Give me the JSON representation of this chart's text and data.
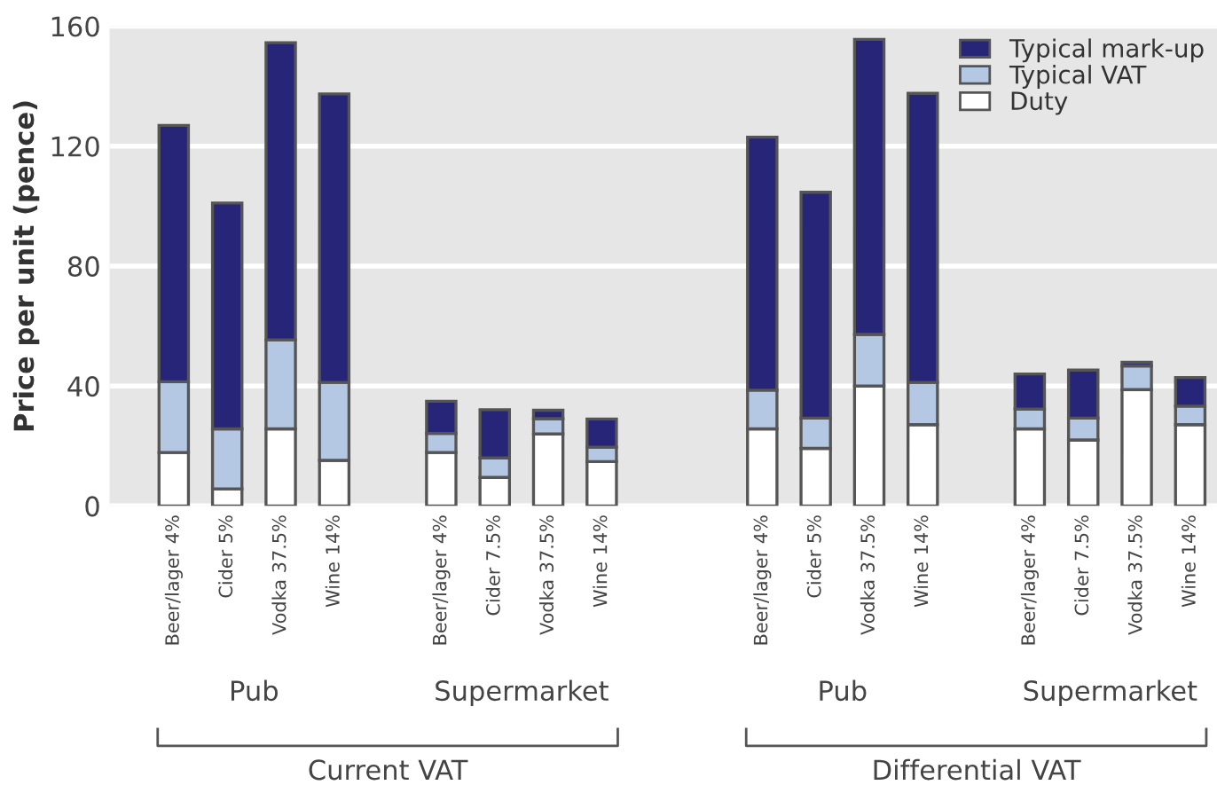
{
  "chart_data": {
    "type": "bar",
    "stacked": true,
    "ylabel": "Price per unit (pence)",
    "categories": [
      "Beer/lager 4%",
      "Cider 5%",
      "Vodka 37.5%",
      "Wine 14%",
      null,
      "Beer/lager 4%",
      "Cider 7.5%",
      "Vodka 37.5%",
      "Wine 14%",
      null,
      null,
      "Beer/lager 4%",
      "Cider 5%",
      "Vodka 37.5%",
      "Wine 14%",
      null,
      "Beer/lager 4%",
      "Cider 7.5%",
      "Vodka 37.5%",
      "Wine 14%"
    ],
    "series": [
      {
        "name": "Duty",
        "color": "#ffffff",
        "values": [
          17.8,
          5.7,
          25.7,
          15.2,
          null,
          17.8,
          9.5,
          24,
          14.8,
          null,
          null,
          25.7,
          19.2,
          40,
          27.1,
          null,
          25.7,
          22,
          38.8,
          27.1
        ]
      },
      {
        "name": "Typical VAT",
        "color": "#b4c7e3",
        "values": [
          23.6,
          20,
          29.7,
          26,
          null,
          6.4,
          6.5,
          5.1,
          4.8,
          null,
          null,
          12.9,
          10.1,
          17.2,
          14.1,
          null,
          6.6,
          7.3,
          7.9,
          6.2
        ]
      },
      {
        "name": "Typical mark-up",
        "color": "#262577",
        "values": [
          85.5,
          75.3,
          99.1,
          96.2,
          null,
          10.7,
          16.1,
          2.8,
          9.4,
          null,
          null,
          84.4,
          75.3,
          98.4,
          96.4,
          null,
          11.7,
          16,
          1.2,
          9.5
        ]
      }
    ],
    "ylim": [
      0,
      160
    ],
    "yticks": [
      0,
      40,
      80,
      120,
      160
    ],
    "grid": "y",
    "legend": "top right",
    "annotations": [
      "Pub",
      "Supermarket",
      "Pub",
      "Supermarket",
      "Current VAT",
      "Differential VAT"
    ]
  }
}
